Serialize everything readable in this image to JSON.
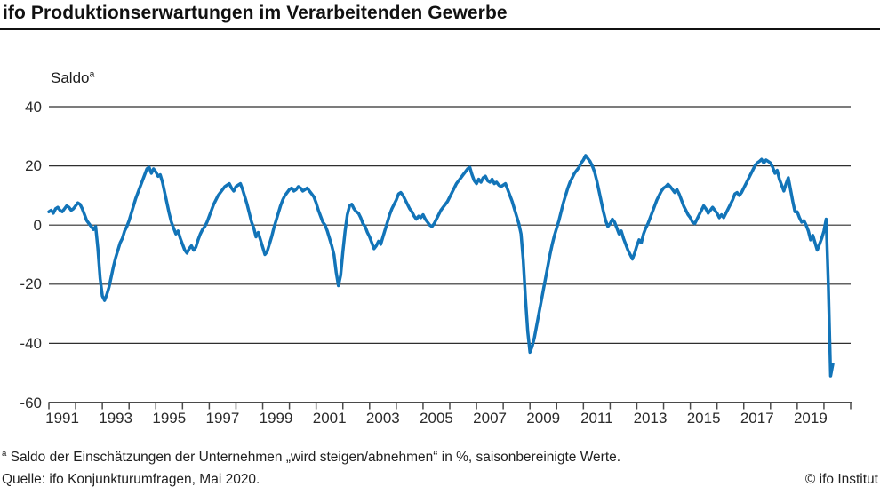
{
  "header": {
    "title": "ifo Produktionserwartungen im Verarbeitenden Gewerbe"
  },
  "chart_data": {
    "type": "line",
    "title": "ifo Produktionserwartungen im Verarbeitenden Gewerbe",
    "y_axis_label": "Saldo",
    "y_axis_label_superscript": "a",
    "ylim": [
      -60,
      40
    ],
    "yticks": [
      40,
      20,
      0,
      -20,
      -40,
      -60
    ],
    "x_axis_range_years": [
      1991,
      2021
    ],
    "x_start": "1991-01",
    "x_end": "2020-05",
    "x_tick_labels": [
      "1991",
      "1993",
      "1995",
      "1997",
      "1999",
      "2001",
      "2003",
      "2005",
      "2007",
      "2009",
      "2011",
      "2013",
      "2015",
      "2017",
      "2019"
    ],
    "grid": "horizontal",
    "legend": "none",
    "line_color": "#1274b8",
    "series": [
      {
        "name": "Produktionserwartungen, Saldo, saisonbereinigt",
        "frequency": "monthly",
        "values": [
          4.5,
          5,
          4,
          5.5,
          6,
          5,
          4.5,
          5.5,
          6.5,
          6,
          5,
          5.5,
          6.5,
          7.5,
          7,
          5.5,
          3.5,
          1.5,
          0.5,
          -0.5,
          -1.5,
          -0.5,
          -8,
          -18,
          -24,
          -25.5,
          -23.5,
          -21,
          -17.5,
          -14,
          -11,
          -8.5,
          -6,
          -4.5,
          -2,
          -0.5,
          1.5,
          4,
          6.5,
          9,
          11,
          13,
          15,
          17,
          19,
          19.5,
          17.5,
          19,
          18,
          16.5,
          17,
          14.5,
          11,
          7.5,
          4,
          1,
          -1,
          -3,
          -2,
          -4.5,
          -6.5,
          -8.5,
          -9.5,
          -8,
          -7,
          -8.5,
          -7.5,
          -5,
          -3,
          -1.5,
          -0.5,
          1,
          3,
          5,
          7,
          8.5,
          10,
          11,
          12,
          13,
          13.5,
          14,
          12.5,
          11.5,
          13,
          13.5,
          14,
          12,
          9.5,
          7,
          4,
          1,
          -1,
          -4,
          -2.5,
          -5,
          -7.5,
          -10,
          -9,
          -6.5,
          -4,
          -1,
          1.5,
          4,
          6.5,
          8.5,
          10,
          11,
          12,
          12.5,
          11.5,
          12,
          13,
          12.5,
          11.5,
          12,
          12.5,
          11.5,
          10.5,
          9.5,
          7.5,
          5,
          3,
          1,
          0,
          -2,
          -4.5,
          -7,
          -10,
          -16,
          -20.5,
          -17,
          -9,
          -2,
          3.5,
          6.5,
          7,
          5.5,
          4.5,
          4,
          2.5,
          0.5,
          -0.5,
          -2.5,
          -4,
          -6,
          -8,
          -7,
          -5.5,
          -6.5,
          -4,
          -1.5,
          1,
          3.5,
          5.5,
          7,
          8.5,
          10.5,
          11,
          10,
          8.5,
          7,
          5.5,
          4.5,
          3,
          2,
          3,
          2.5,
          3.5,
          2,
          1,
          0,
          -0.5,
          0.5,
          2,
          3.5,
          5,
          6,
          7,
          8,
          9.5,
          11,
          12.5,
          14,
          15,
          16,
          17,
          18,
          19,
          19.5,
          17,
          15,
          14,
          15.5,
          14.5,
          16,
          16.5,
          15,
          14.5,
          15.5,
          14,
          14.5,
          13.5,
          13,
          13.5,
          14,
          12,
          10,
          8,
          5.5,
          3,
          0.5,
          -3,
          -12,
          -25,
          -36,
          -43,
          -41,
          -38,
          -34,
          -30,
          -26,
          -22,
          -18,
          -14,
          -10,
          -6.5,
          -3.5,
          -1,
          1.5,
          4.5,
          7.5,
          10,
          12.5,
          14.5,
          16,
          17.5,
          18.5,
          19.5,
          21,
          22,
          23.5,
          22.5,
          21.5,
          20,
          18,
          15,
          11.5,
          8,
          4.5,
          1.5,
          -0.5,
          0.5,
          2,
          1,
          -1,
          -3,
          -2,
          -4.5,
          -6.5,
          -8.5,
          -10,
          -11.5,
          -9.5,
          -7,
          -5,
          -6,
          -3,
          -1,
          0.5,
          2.5,
          4.5,
          6.5,
          8.5,
          10,
          11.5,
          12.5,
          13,
          13.8,
          13,
          12,
          11,
          12,
          10.5,
          8.5,
          6.5,
          5,
          3.5,
          2.5,
          1,
          0.5,
          2,
          3.5,
          5,
          6.5,
          5.5,
          4,
          5,
          6,
          5,
          4,
          2.5,
          3.5,
          2.5,
          4,
          5.5,
          7,
          8.5,
          10.5,
          11,
          10,
          11,
          12.5,
          14,
          15.5,
          17,
          18.5,
          20,
          21,
          21.5,
          22.2,
          21,
          22,
          21.5,
          21,
          19.5,
          17.5,
          18.5,
          15.5,
          13.5,
          11.5,
          14,
          16,
          12,
          8,
          4.5,
          4.5,
          2.5,
          1,
          1.5,
          0,
          -2,
          -5,
          -3.5,
          -6,
          -8.5,
          -6.5,
          -4.5,
          -2,
          2,
          -21,
          -51,
          -47
        ]
      }
    ]
  },
  "colors": {
    "line": "#1274b8",
    "grid": "#2e2e2e",
    "axis": "#4a4a4a",
    "text": "#1c1c1c"
  },
  "footer": {
    "footnote_marker": "a",
    "footnote_text": " Saldo der Einschätzungen der Unternehmen „wird steigen/abnehmen“ in %, saisonbereinigte Werte.",
    "source": "Quelle: ifo Konjunkturumfragen, Mai 2020.",
    "copyright": "© ifo Institut"
  }
}
